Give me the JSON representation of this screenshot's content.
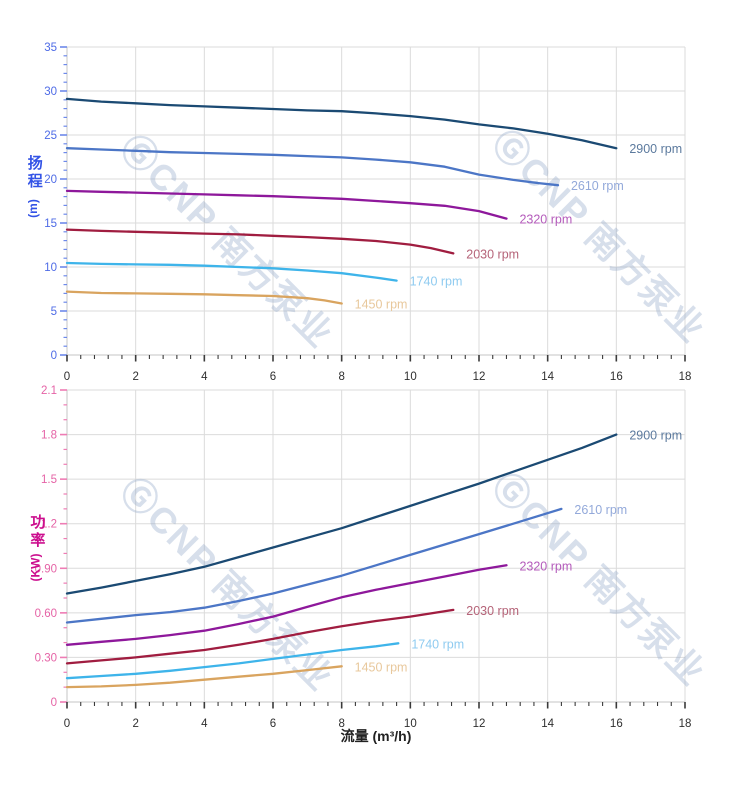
{
  "page": {
    "background": "#ffffff"
  },
  "xlabel": {
    "text": "流量 (m³/h)",
    "color": "#222222"
  },
  "watermark": {
    "text": "ⒼCNP 南方泵业",
    "color": "rgba(150,170,202,0.38)"
  },
  "chart_data": [
    {
      "type": "line",
      "name": "head-chart",
      "ylabel": "扬程",
      "ylabel_unit": "(m)",
      "ylabel_color": "#3353E6",
      "tick_label_color": "#4E6BE6",
      "tick_color": "#6D89EA",
      "xlim": [
        0,
        18
      ],
      "ylim": [
        0,
        35
      ],
      "xticks": [
        0,
        2,
        4,
        6,
        8,
        10,
        12,
        14,
        16,
        18
      ],
      "x_minor_step": 0.4,
      "y_minor_step": 1,
      "yticks": [
        {
          "v": 0,
          "label": "0"
        },
        {
          "v": 5,
          "label": "5"
        },
        {
          "v": 10,
          "label": "10"
        },
        {
          "v": 15,
          "label": "15"
        },
        {
          "v": 20,
          "label": "20"
        },
        {
          "v": 25,
          "label": "25"
        },
        {
          "v": 30,
          "label": "30"
        },
        {
          "v": 35,
          "label": "35"
        }
      ],
      "grid": true,
      "legend_position": "end-of-line",
      "series": [
        {
          "name": "2900 rpm",
          "color": "#1B4A73",
          "label_color": "#5C7A9E",
          "points": [
            [
              0,
              29.1
            ],
            [
              1,
              28.8
            ],
            [
              2,
              28.6
            ],
            [
              3,
              28.4
            ],
            [
              4,
              28.25
            ],
            [
              5,
              28.1
            ],
            [
              6,
              27.95
            ],
            [
              7,
              27.8
            ],
            [
              8,
              27.7
            ],
            [
              9,
              27.45
            ],
            [
              10,
              27.15
            ],
            [
              11,
              26.75
            ],
            [
              12,
              26.2
            ],
            [
              13,
              25.75
            ],
            [
              14,
              25.15
            ],
            [
              15,
              24.4
            ],
            [
              16,
              23.5
            ]
          ]
        },
        {
          "name": "2610 rpm",
          "color": "#4C76C6",
          "label_color": "#93A9DA",
          "points": [
            [
              0,
              23.5
            ],
            [
              1,
              23.35
            ],
            [
              2,
              23.2
            ],
            [
              3,
              23.05
            ],
            [
              4,
              22.95
            ],
            [
              5,
              22.85
            ],
            [
              6,
              22.75
            ],
            [
              7,
              22.6
            ],
            [
              8,
              22.45
            ],
            [
              9,
              22.2
            ],
            [
              10,
              21.9
            ],
            [
              11,
              21.4
            ],
            [
              12,
              20.5
            ],
            [
              13,
              19.9
            ],
            [
              13.7,
              19.55
            ],
            [
              14.3,
              19.3
            ]
          ]
        },
        {
          "name": "2320 rpm",
          "color": "#8E189B",
          "label_color": "#B45BBB",
          "points": [
            [
              0,
              18.65
            ],
            [
              1,
              18.55
            ],
            [
              2,
              18.45
            ],
            [
              3,
              18.35
            ],
            [
              4,
              18.25
            ],
            [
              5,
              18.15
            ],
            [
              6,
              18.05
            ],
            [
              7,
              17.9
            ],
            [
              8,
              17.75
            ],
            [
              9,
              17.5
            ],
            [
              10,
              17.25
            ],
            [
              11,
              16.95
            ],
            [
              12,
              16.35
            ],
            [
              12.8,
              15.5
            ]
          ]
        },
        {
          "name": "2030 rpm",
          "color": "#A01D40",
          "label_color": "#B56378",
          "points": [
            [
              0,
              14.25
            ],
            [
              1,
              14.1
            ],
            [
              2,
              14.0
            ],
            [
              3,
              13.9
            ],
            [
              4,
              13.8
            ],
            [
              5,
              13.7
            ],
            [
              6,
              13.55
            ],
            [
              7,
              13.4
            ],
            [
              8,
              13.2
            ],
            [
              9,
              12.95
            ],
            [
              10,
              12.55
            ],
            [
              10.6,
              12.15
            ],
            [
              11.25,
              11.55
            ]
          ]
        },
        {
          "name": "1740 rpm",
          "color": "#3EB4EA",
          "label_color": "#8FCBF0",
          "points": [
            [
              0,
              10.45
            ],
            [
              1,
              10.35
            ],
            [
              2,
              10.3
            ],
            [
              3,
              10.25
            ],
            [
              4,
              10.15
            ],
            [
              5,
              10.0
            ],
            [
              6,
              9.85
            ],
            [
              7,
              9.6
            ],
            [
              8,
              9.3
            ],
            [
              9,
              8.8
            ],
            [
              9.6,
              8.45
            ]
          ]
        },
        {
          "name": "1450 rpm",
          "color": "#D9A45F",
          "label_color": "#E8C89C",
          "points": [
            [
              0,
              7.2
            ],
            [
              1,
              7.05
            ],
            [
              2,
              7.0
            ],
            [
              3,
              6.95
            ],
            [
              4,
              6.9
            ],
            [
              5,
              6.8
            ],
            [
              6,
              6.7
            ],
            [
              7,
              6.45
            ],
            [
              7.5,
              6.2
            ],
            [
              8,
              5.85
            ]
          ]
        }
      ]
    },
    {
      "type": "line",
      "name": "power-chart",
      "ylabel": "功率",
      "ylabel_unit": "(KW)",
      "ylabel_color": "#CC0E8E",
      "tick_label_color": "#E563A6",
      "tick_color": "#EE7CB4",
      "xlim": [
        0,
        18
      ],
      "ylim": [
        0,
        2.1
      ],
      "xticks": [
        0,
        2,
        4,
        6,
        8,
        10,
        12,
        14,
        16,
        18
      ],
      "x_minor_step": 0.4,
      "y_minor_step": 0.1,
      "yticks": [
        {
          "v": 0,
          "label": "0"
        },
        {
          "v": 0.3,
          "label": "0.30"
        },
        {
          "v": 0.6,
          "label": "0.60"
        },
        {
          "v": 0.9,
          "label": "0.90"
        },
        {
          "v": 1.2,
          "label": "1.2"
        },
        {
          "v": 1.5,
          "label": "1.5"
        },
        {
          "v": 1.8,
          "label": "1.8"
        },
        {
          "v": 2.1,
          "label": "2.1"
        }
      ],
      "grid": true,
      "legend_position": "end-of-line",
      "series": [
        {
          "name": "2900 rpm",
          "color": "#1B4A73",
          "label_color": "#5C7A9E",
          "points": [
            [
              0,
              0.73
            ],
            [
              1,
              0.77
            ],
            [
              2,
              0.815
            ],
            [
              3,
              0.86
            ],
            [
              4,
              0.91
            ],
            [
              5,
              0.975
            ],
            [
              6,
              1.04
            ],
            [
              7,
              1.105
            ],
            [
              8,
              1.17
            ],
            [
              9,
              1.245
            ],
            [
              10,
              1.32
            ],
            [
              11,
              1.395
            ],
            [
              12,
              1.47
            ],
            [
              13,
              1.55
            ],
            [
              14,
              1.63
            ],
            [
              15,
              1.71
            ],
            [
              16,
              1.8
            ]
          ]
        },
        {
          "name": "2610 rpm",
          "color": "#4C76C6",
          "label_color": "#93A9DA",
          "points": [
            [
              0,
              0.535
            ],
            [
              1,
              0.56
            ],
            [
              2,
              0.585
            ],
            [
              3,
              0.605
            ],
            [
              4,
              0.635
            ],
            [
              5,
              0.68
            ],
            [
              6,
              0.73
            ],
            [
              7,
              0.79
            ],
            [
              8,
              0.85
            ],
            [
              9,
              0.92
            ],
            [
              10,
              0.99
            ],
            [
              11,
              1.06
            ],
            [
              12,
              1.13
            ],
            [
              13,
              1.2
            ],
            [
              14.4,
              1.3
            ]
          ]
        },
        {
          "name": "2320 rpm",
          "color": "#8E189B",
          "label_color": "#B45BBB",
          "points": [
            [
              0,
              0.385
            ],
            [
              1,
              0.405
            ],
            [
              2,
              0.425
            ],
            [
              3,
              0.45
            ],
            [
              4,
              0.48
            ],
            [
              5,
              0.525
            ],
            [
              6,
              0.575
            ],
            [
              7,
              0.64
            ],
            [
              8,
              0.705
            ],
            [
              9,
              0.755
            ],
            [
              10,
              0.8
            ],
            [
              11,
              0.845
            ],
            [
              12,
              0.89
            ],
            [
              12.8,
              0.92
            ]
          ]
        },
        {
          "name": "2030 rpm",
          "color": "#A01D40",
          "label_color": "#B56378",
          "points": [
            [
              0,
              0.26
            ],
            [
              1,
              0.28
            ],
            [
              2,
              0.3
            ],
            [
              3,
              0.325
            ],
            [
              4,
              0.35
            ],
            [
              5,
              0.385
            ],
            [
              6,
              0.425
            ],
            [
              7,
              0.47
            ],
            [
              8,
              0.51
            ],
            [
              9,
              0.545
            ],
            [
              10,
              0.575
            ],
            [
              11.25,
              0.62
            ]
          ]
        },
        {
          "name": "1740 rpm",
          "color": "#3EB4EA",
          "label_color": "#8FCBF0",
          "points": [
            [
              0,
              0.16
            ],
            [
              1,
              0.175
            ],
            [
              2,
              0.19
            ],
            [
              3,
              0.21
            ],
            [
              4,
              0.235
            ],
            [
              5,
              0.26
            ],
            [
              6,
              0.29
            ],
            [
              7,
              0.32
            ],
            [
              8,
              0.35
            ],
            [
              9,
              0.375
            ],
            [
              9.65,
              0.395
            ]
          ]
        },
        {
          "name": "1450 rpm",
          "color": "#D9A45F",
          "label_color": "#E8C89C",
          "points": [
            [
              0,
              0.1
            ],
            [
              1,
              0.105
            ],
            [
              2,
              0.115
            ],
            [
              3,
              0.13
            ],
            [
              4,
              0.15
            ],
            [
              5,
              0.17
            ],
            [
              6,
              0.19
            ],
            [
              7,
              0.215
            ],
            [
              8,
              0.24
            ]
          ]
        }
      ]
    }
  ]
}
